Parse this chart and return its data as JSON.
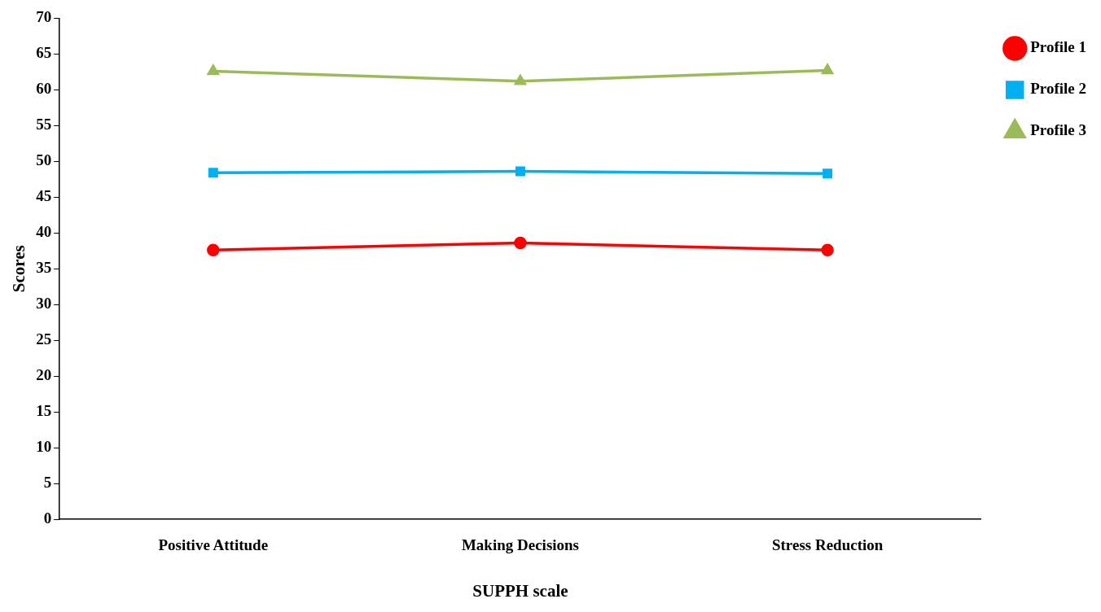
{
  "chart_data": {
    "type": "line",
    "xlabel": "SUPPH scale",
    "ylabel": "Scores",
    "categories": [
      "Positive Attitude",
      "Making Decisions",
      "Stress Reduction"
    ],
    "series": [
      {
        "name": "Profile 1",
        "color": "#ff0000",
        "marker": "circle",
        "values": [
          37.6,
          38.6,
          37.6
        ]
      },
      {
        "name": "Profile 2",
        "color": "#00b0f0",
        "marker": "square",
        "values": [
          48.4,
          48.6,
          48.3
        ]
      },
      {
        "name": "Profile 3",
        "color": "#9bbb59",
        "marker": "triangle",
        "values": [
          62.6,
          61.2,
          62.7
        ]
      }
    ],
    "ylim": [
      0,
      70
    ],
    "yticks": [
      0,
      5,
      10,
      15,
      20,
      25,
      30,
      35,
      40,
      45,
      50,
      55,
      60,
      65,
      70
    ],
    "grid": false,
    "legend": "top right",
    "line_style": "solid"
  }
}
